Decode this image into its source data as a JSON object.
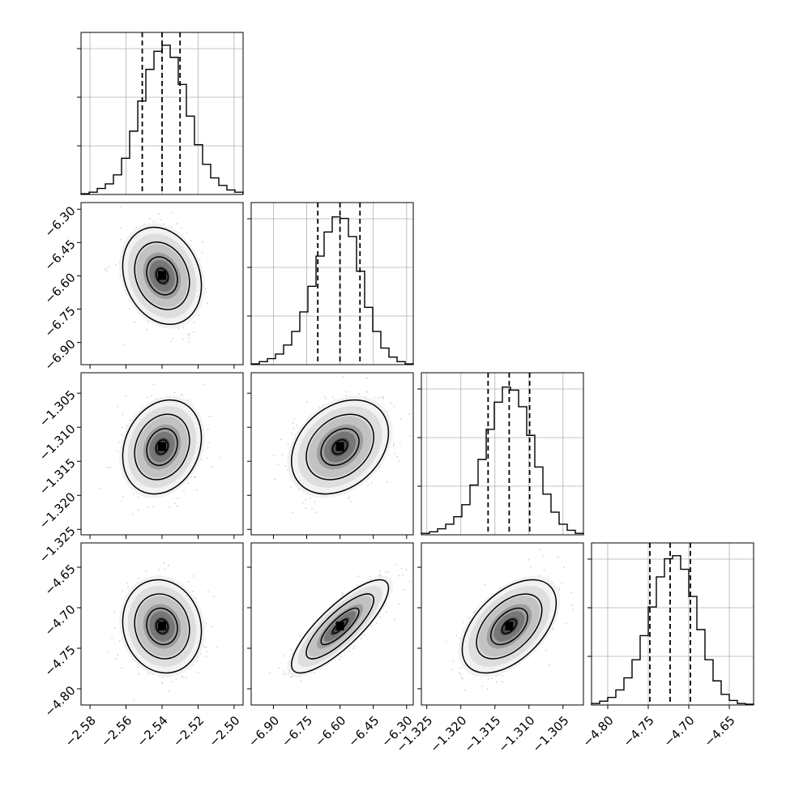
{
  "chart_data": {
    "type": "corner",
    "title": "",
    "params": [
      {
        "range": [
          -2.585,
          -2.495
        ],
        "ticks": [
          -2.58,
          -2.56,
          -2.54,
          -2.52,
          -2.5
        ],
        "tick_labels": [
          "−2.58",
          "−2.56",
          "−2.54",
          "−2.52",
          "−2.50"
        ],
        "quantiles": [
          -2.551,
          -2.54,
          -2.53
        ],
        "mean": -2.54,
        "sd": 0.0095
      },
      {
        "range": [
          -7.0,
          -6.27
        ],
        "ticks": [
          -6.9,
          -6.75,
          -6.6,
          -6.45,
          -6.3
        ],
        "tick_labels": [
          "−6.90",
          "−6.75",
          "−6.60",
          "−6.45",
          "−6.30"
        ],
        "quantiles": [
          -6.7,
          -6.6,
          -6.51
        ],
        "mean": -6.6,
        "sd": 0.095
      },
      {
        "range": [
          -1.3258,
          -1.302
        ],
        "ticks": [
          -1.325,
          -1.32,
          -1.315,
          -1.31,
          -1.305
        ],
        "tick_labels": [
          "−1.325",
          "−1.320",
          "−1.315",
          "−1.310",
          "−1.305"
        ],
        "quantiles": [
          -1.316,
          -1.3129,
          -1.3099
        ],
        "mean": -1.3129,
        "sd": 0.003
      },
      {
        "range": [
          -4.82,
          -4.62
        ],
        "ticks": [
          -4.8,
          -4.75,
          -4.7,
          -4.65
        ],
        "tick_labels": [
          "−4.80",
          "−4.75",
          "−4.70",
          "−4.65"
        ],
        "quantiles": [
          -4.748,
          -4.723,
          -4.698
        ],
        "mean": -4.723,
        "sd": 0.025
      }
    ],
    "histogram_heights": [
      [
        0.005,
        0.015,
        0.04,
        0.07,
        0.13,
        0.24,
        0.42,
        0.62,
        0.83,
        0.95,
        0.99,
        0.91,
        0.73,
        0.52,
        0.33,
        0.2,
        0.11,
        0.06,
        0.03,
        0.015
      ],
      [
        0.005,
        0.02,
        0.04,
        0.07,
        0.13,
        0.22,
        0.35,
        0.52,
        0.72,
        0.88,
        0.98,
        0.97,
        0.85,
        0.62,
        0.38,
        0.22,
        0.11,
        0.05,
        0.02,
        0.005
      ],
      [
        0.01,
        0.02,
        0.04,
        0.07,
        0.12,
        0.2,
        0.33,
        0.5,
        0.7,
        0.88,
        0.98,
        0.96,
        0.85,
        0.66,
        0.45,
        0.27,
        0.15,
        0.07,
        0.03,
        0.01
      ],
      [
        0.01,
        0.025,
        0.05,
        0.1,
        0.18,
        0.3,
        0.46,
        0.65,
        0.85,
        0.97,
        0.99,
        0.9,
        0.72,
        0.5,
        0.3,
        0.16,
        0.07,
        0.03,
        0.01,
        0.005
      ]
    ],
    "correlations": [
      {
        "i": 1,
        "j": 0,
        "r": -0.2
      },
      {
        "i": 2,
        "j": 0,
        "r": 0.2
      },
      {
        "i": 2,
        "j": 1,
        "r": 0.3
      },
      {
        "i": 3,
        "j": 0,
        "r": -0.1
      },
      {
        "i": 3,
        "j": 1,
        "r": 0.82
      },
      {
        "i": 3,
        "j": 2,
        "r": 0.5
      }
    ],
    "grid": true,
    "colors": {
      "line": "#000000",
      "grid": "#b0b0b0",
      "scatter": "#9a9a9a"
    }
  }
}
